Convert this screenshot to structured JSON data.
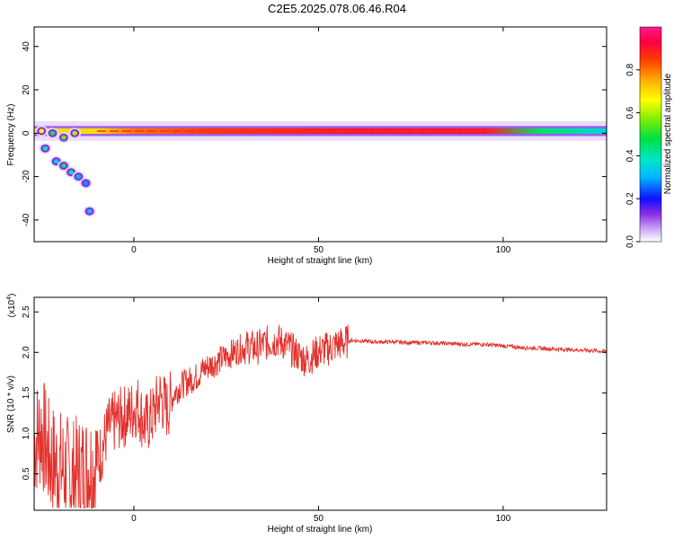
{
  "title": "C2E5.2025.078.06.46.R04",
  "colors": {
    "snr_line": "#e3312c",
    "axis": "#000000"
  },
  "chart_data": [
    {
      "type": "heatmap",
      "xlabel": "Height of straight line (km)",
      "ylabel": "Frequency (Hz)",
      "xlim": [
        -27,
        128
      ],
      "ylim": [
        -50,
        49
      ],
      "x_ticks": [
        0,
        50,
        100
      ],
      "y_ticks": [
        -40,
        -20,
        0,
        20,
        40
      ],
      "colorbar": {
        "label": "Normalized spectral amplitude",
        "range": [
          0,
          1
        ],
        "ticks": [
          0.0,
          0.2,
          0.4,
          0.6,
          0.8
        ]
      },
      "ridge": {
        "frequency_hz": 1,
        "amplitude_by_height": [
          {
            "x": -10,
            "v": 0.7
          },
          {
            "x": 0,
            "v": 0.8
          },
          {
            "x": 20,
            "v": 0.85
          },
          {
            "x": 60,
            "v": 0.9
          },
          {
            "x": 95,
            "v": 0.9
          },
          {
            "x": 110,
            "v": 0.45
          },
          {
            "x": 128,
            "v": 0.35
          }
        ]
      },
      "blobs": [
        {
          "x": -25,
          "y": 1,
          "v": 0.45
        },
        {
          "x": -22,
          "y": 0,
          "v": 0.3
        },
        {
          "x": -19,
          "y": -2,
          "v": 0.35
        },
        {
          "x": -16,
          "y": 0,
          "v": 0.4
        },
        {
          "x": -24,
          "y": -7,
          "v": 0.2
        },
        {
          "x": -21,
          "y": -13,
          "v": 0.15
        },
        {
          "x": -19,
          "y": -15,
          "v": 0.25
        },
        {
          "x": -17,
          "y": -18,
          "v": 0.2
        },
        {
          "x": -15,
          "y": -20,
          "v": 0.1
        },
        {
          "x": -13,
          "y": -23,
          "v": 0.08
        },
        {
          "x": -12,
          "y": -36,
          "v": 0.12
        }
      ]
    },
    {
      "type": "line",
      "xlabel": "Height of straight line (km)",
      "ylabel": "SNR (10 * v/v)",
      "y_multiplier": "(x10",
      "y_multiplier_exp": "4",
      "y_multiplier_close": ")",
      "xlim": [
        -27,
        128
      ],
      "ylim": [
        0.05,
        2.68
      ],
      "x_ticks": [
        0,
        50,
        100
      ],
      "y_ticks": [
        0.5,
        1.0,
        1.5,
        2.0,
        2.5
      ],
      "series": [
        {
          "x": [
            -27,
            -25,
            -23,
            -21,
            -19,
            -17,
            -15,
            -13,
            -11,
            -9,
            -7,
            -5,
            -3,
            -1,
            1,
            3,
            5,
            7,
            9,
            11,
            13,
            15,
            17,
            19,
            21,
            23,
            25,
            27,
            29,
            31,
            33,
            35,
            37,
            39,
            41,
            43,
            45,
            47,
            49,
            51,
            53,
            55,
            57,
            59,
            62,
            65,
            70,
            75,
            80,
            85,
            90,
            95,
            100,
            105,
            110,
            115,
            120,
            125,
            128
          ],
          "y": [
            0.9,
            1.05,
            0.7,
            0.6,
            0.55,
            0.45,
            0.5,
            0.55,
            0.6,
            0.75,
            1.05,
            1.15,
            1.2,
            1.25,
            1.35,
            1.1,
            1.2,
            1.45,
            1.3,
            1.5,
            1.6,
            1.65,
            1.7,
            1.8,
            1.85,
            1.9,
            1.95,
            2.0,
            2.05,
            2.07,
            2.05,
            2.1,
            2.13,
            2.15,
            2.1,
            2.02,
            1.95,
            1.9,
            1.98,
            2.03,
            2.05,
            2.1,
            2.12,
            2.15,
            2.14,
            2.13,
            2.13,
            2.12,
            2.12,
            2.11,
            2.1,
            2.1,
            2.08,
            2.06,
            2.05,
            2.04,
            2.03,
            2.02,
            2.01
          ]
        }
      ]
    }
  ]
}
